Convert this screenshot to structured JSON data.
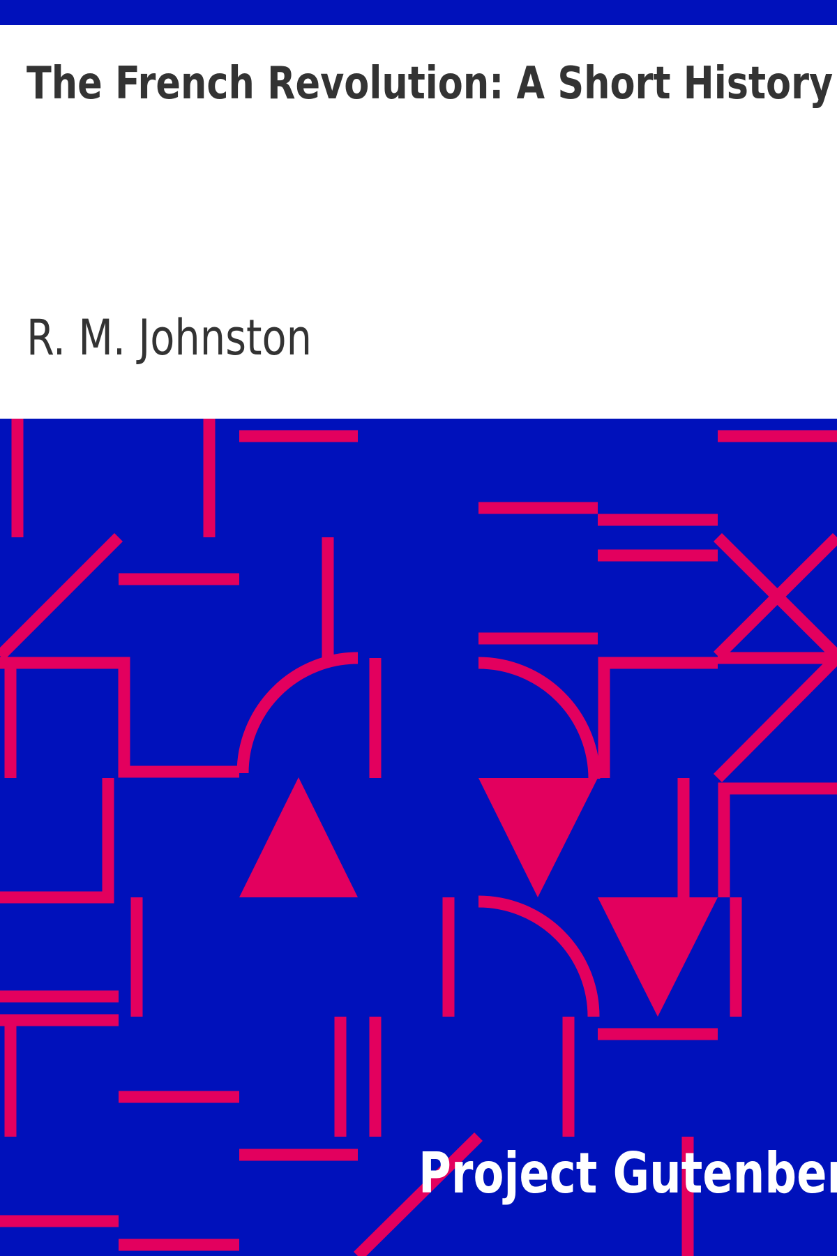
{
  "cover": {
    "title": "The French Revolution: A Short History",
    "author": "R. M. Johnston",
    "publisher": "Project Gutenberg"
  },
  "colors": {
    "band": "#0011bb",
    "background": "#ffffff",
    "pattern_background": "#0011bb",
    "pattern_accent": "#e3005e",
    "text": "#333333",
    "publisher_text": "#ffffff"
  }
}
